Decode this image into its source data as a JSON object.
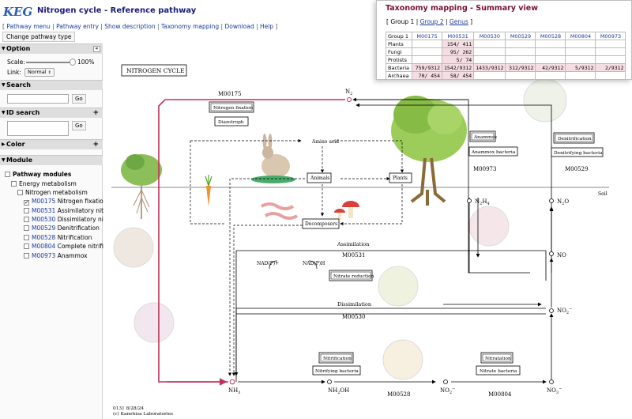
{
  "header": {
    "logo_text": "KEGG",
    "title": "Nitrogen cycle - Reference pathway",
    "menu": [
      "Pathway menu",
      "Pathway entry",
      "Show description",
      "Taxonomy mapping",
      "Download",
      "Help"
    ],
    "change_button": "Change pathway type"
  },
  "sidebar": {
    "option": {
      "title": "Option",
      "scale_label": "Scale:",
      "scale_value": "100%",
      "link_label": "Link:",
      "link_value": "Normal"
    },
    "search": {
      "title": "Search",
      "go": "Go"
    },
    "id_search": {
      "title": "ID search",
      "go": "Go"
    },
    "color": {
      "title": "Color"
    },
    "module": {
      "title": "Module",
      "tree": [
        {
          "label": "Pathway modules",
          "bold": true,
          "indent": 0
        },
        {
          "label": "Energy metabolism",
          "indent": 1
        },
        {
          "label": "Nitrogen metabolism",
          "indent": 2
        },
        {
          "id": "M00175",
          "label": "Nitrogen fixation",
          "checked": true,
          "indent": 3
        },
        {
          "id": "M00531",
          "label": "Assimilatory nitra",
          "indent": 3
        },
        {
          "id": "M00530",
          "label": "Dissimilatory nitra",
          "indent": 3
        },
        {
          "id": "M00529",
          "label": "Denitrification",
          "indent": 3
        },
        {
          "id": "M00528",
          "label": "Nitrification",
          "indent": 3
        },
        {
          "id": "M00804",
          "label": "Complete nitrifica",
          "indent": 3
        },
        {
          "id": "M00973",
          "label": "Anammox",
          "indent": 3
        }
      ]
    }
  },
  "map": {
    "title": "NITROGEN CYCLE",
    "soil": "Soil",
    "footer_line1": "0131 8/28/24",
    "footer_line2": "(c) Kanehisa Laboratories",
    "compounds": {
      "n2": "N",
      "n2_sub": "2",
      "nh3": "NH",
      "nh3_sub": "3",
      "n2h4": "N",
      "n2h4_sub1": "2",
      "n2h4_h": "H",
      "n2h4_sub2": "4",
      "n2o": "N",
      "n2o_sub": "2",
      "n2o_o": "O",
      "no": "NO",
      "no2": "NO",
      "no2_sub": "2",
      "no2_sup": "−",
      "no3": "NO",
      "no3_sub": "3",
      "no3_sup": "−",
      "nh2oh": "NH",
      "nh2oh_sub": "2",
      "nh2oh_oh": "OH",
      "nadph": "NAD(P)H",
      "nadp": "NAD(P)+"
    },
    "labels": {
      "amino_acid": "Amino acid",
      "animals": "Animals",
      "plants": "Plants",
      "decomposers": "Decomposers",
      "assimilation": "Assimilation",
      "dissimilation": "Dissimilation",
      "m00175": "M00175",
      "m00531": "M00531",
      "m00530": "M00530",
      "m00528": "M00528",
      "m00804": "M00804",
      "m00973": "M00973",
      "m00529": "M00529"
    },
    "boxes": {
      "nitrogen_fixation": "Nitrogen fixation",
      "diazotroph": "Diazotroph",
      "anammox": "Anammox",
      "anammox_bacteria": "Anammox bacteria",
      "denitrification": "Denitrification",
      "denitrifying_bacteria": "Denitrifying bacteria",
      "nitrate_reduction": "Nitrate reduction",
      "nitrification": "Nitrification",
      "nitrifying_bacteria": "Nitrifying bacteria",
      "nitratation": "Nitratation",
      "nitrate_bacteria": "Nitrate bacteria"
    }
  },
  "popup": {
    "title": "Taxonomy mapping - Summary view",
    "groups": [
      "Group 1",
      "Group 2",
      "Genus"
    ],
    "table": {
      "corner": "Group 1",
      "columns": [
        "M00175",
        "M00531",
        "M00530",
        "M00529",
        "M00528",
        "M00804",
        "M00973"
      ],
      "rows": [
        {
          "name": "Plants",
          "cells": [
            "",
            "154/ 411",
            "",
            "",
            "",
            "",
            ""
          ]
        },
        {
          "name": "Fungi",
          "cells": [
            "",
            "95/ 262",
            "",
            "",
            "",
            "",
            ""
          ]
        },
        {
          "name": "Protists",
          "cells": [
            "",
            "5/ 74",
            "",
            "",
            "",
            "",
            ""
          ]
        },
        {
          "name": "Bacteria",
          "cells": [
            "759/9312",
            "1542/9312",
            "1433/9312",
            "312/9312",
            "42/9312",
            "5/9312",
            "2/9312"
          ]
        },
        {
          "name": "Archaea",
          "cells": [
            "70/ 454",
            "58/ 454",
            "",
            "",
            "",
            "",
            ""
          ]
        }
      ]
    },
    "highlight_color": "#f4dde3"
  },
  "colors": {
    "title": "#1a1a7a",
    "link": "#1a3a9a",
    "popup_title": "#7a1030",
    "nitrogen_fixation_path": "#c0305a"
  }
}
